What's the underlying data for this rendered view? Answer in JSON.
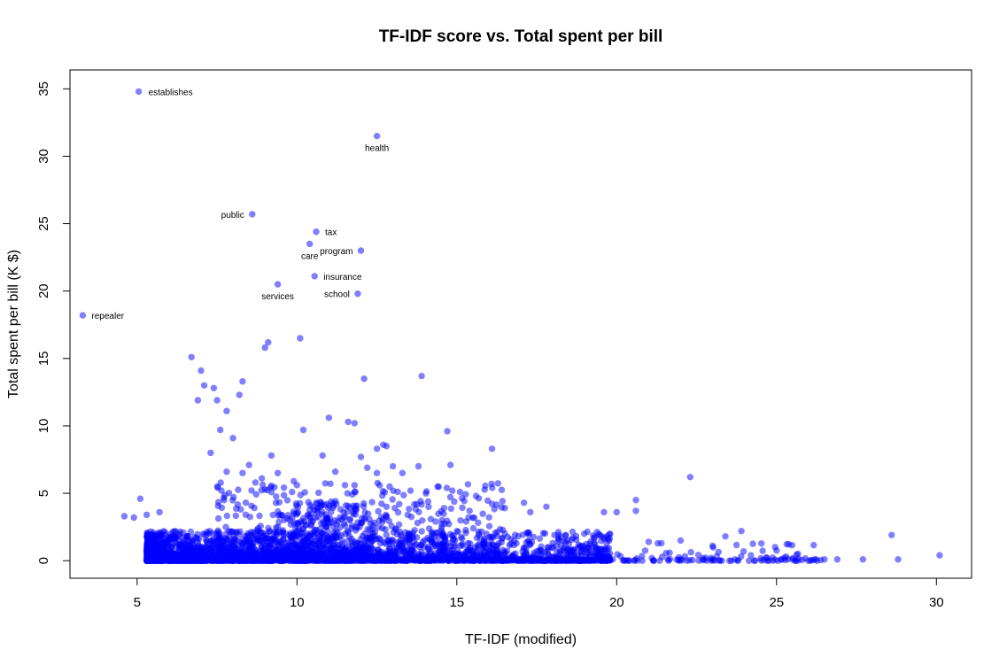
{
  "chart_data": {
    "type": "scatter",
    "title": "TF-IDF score vs. Total spent per bill",
    "xlabel": "TF-IDF (modified)",
    "ylabel": "Total spent per bill (K $)",
    "xlim": [
      2.9,
      31.1
    ],
    "ylim": [
      -1.3,
      36.4
    ],
    "xticks": [
      5,
      10,
      15,
      20,
      25,
      30
    ],
    "yticks": [
      0,
      5,
      10,
      15,
      20,
      25,
      30,
      35
    ],
    "point_color": "#0000ff",
    "point_alpha": 0.5,
    "labeled_points": [
      {
        "label": "establishes",
        "x": 5.05,
        "y": 34.8
      },
      {
        "label": "health",
        "x": 12.5,
        "y": 31.5
      },
      {
        "label": "public",
        "x": 8.6,
        "y": 25.7
      },
      {
        "label": "tax",
        "x": 10.6,
        "y": 24.4
      },
      {
        "label": "care",
        "x": 10.4,
        "y": 23.5
      },
      {
        "label": "program",
        "x": 12.0,
        "y": 23.0
      },
      {
        "label": "insurance",
        "x": 10.55,
        "y": 21.1
      },
      {
        "label": "services",
        "x": 9.4,
        "y": 20.5
      },
      {
        "label": "school",
        "x": 11.9,
        "y": 19.8
      },
      {
        "label": "repealer",
        "x": 3.3,
        "y": 18.2
      }
    ],
    "points": [
      [
        6.7,
        15.1
      ],
      [
        7.0,
        14.1
      ],
      [
        7.1,
        13.0
      ],
      [
        7.4,
        12.8
      ],
      [
        6.9,
        11.9
      ],
      [
        7.5,
        11.9
      ],
      [
        8.3,
        13.3
      ],
      [
        8.2,
        12.3
      ],
      [
        9.1,
        16.2
      ],
      [
        9.0,
        15.8
      ],
      [
        10.1,
        16.5
      ],
      [
        12.1,
        13.5
      ],
      [
        13.9,
        13.7
      ],
      [
        7.8,
        11.1
      ],
      [
        11.0,
        10.6
      ],
      [
        11.6,
        10.3
      ],
      [
        11.8,
        10.2
      ],
      [
        8.0,
        9.1
      ],
      [
        7.6,
        9.7
      ],
      [
        10.2,
        9.7
      ],
      [
        14.7,
        9.6
      ],
      [
        12.8,
        8.5
      ],
      [
        12.5,
        8.3
      ],
      [
        16.1,
        8.3
      ],
      [
        7.3,
        8.0
      ],
      [
        9.2,
        7.8
      ],
      [
        10.8,
        7.8
      ],
      [
        12.0,
        7.7
      ],
      [
        12.7,
        8.6
      ],
      [
        8.5,
        7.1
      ],
      [
        14.8,
        7.1
      ],
      [
        13.0,
        7.0
      ],
      [
        13.8,
        7.0
      ],
      [
        12.2,
        6.9
      ],
      [
        12.5,
        6.5
      ],
      [
        7.8,
        6.6
      ],
      [
        8.3,
        6.5
      ],
      [
        9.4,
        6.5
      ],
      [
        11.2,
        6.6
      ],
      [
        13.3,
        6.5
      ],
      [
        22.3,
        6.2
      ],
      [
        8.9,
        6.1
      ],
      [
        9.9,
        5.9
      ],
      [
        8.7,
        5.8
      ],
      [
        10.0,
        5.6
      ],
      [
        11.5,
        5.6
      ],
      [
        11.8,
        5.6
      ],
      [
        12.9,
        5.5
      ],
      [
        14.4,
        5.5
      ],
      [
        15.1,
        5.1
      ],
      [
        15.6,
        4.8
      ],
      [
        5.1,
        4.6
      ],
      [
        20.6,
        4.5
      ],
      [
        8.4,
        4.3
      ],
      [
        10.6,
        4.3
      ],
      [
        13.2,
        4.2
      ],
      [
        17.1,
        4.3
      ],
      [
        17.8,
        4.0
      ],
      [
        12.8,
        4.0
      ],
      [
        16.5,
        3.9
      ],
      [
        17.3,
        3.6
      ],
      [
        19.6,
        3.6
      ],
      [
        20.0,
        3.6
      ],
      [
        20.6,
        3.7
      ],
      [
        14.6,
        3.9
      ],
      [
        15.4,
        3.7
      ],
      [
        4.6,
        3.3
      ],
      [
        4.9,
        3.2
      ],
      [
        5.3,
        3.4
      ],
      [
        5.7,
        3.6
      ],
      [
        28.6,
        1.9
      ],
      [
        21.0,
        1.4
      ],
      [
        21.4,
        1.3
      ],
      [
        22.0,
        1.5
      ],
      [
        23.0,
        1.1
      ],
      [
        23.4,
        1.8
      ],
      [
        23.9,
        2.2
      ],
      [
        24.2,
        0.4
      ],
      [
        25.3,
        0.3
      ],
      [
        26.5,
        0.1
      ],
      [
        27.7,
        0.1
      ],
      [
        28.8,
        0.1
      ],
      [
        30.1,
        0.4
      ],
      [
        26.9,
        0.1
      ],
      [
        26.1,
        0.05
      ],
      [
        25.5,
        0.1
      ],
      [
        24.7,
        0.2
      ],
      [
        23.7,
        0.1
      ],
      [
        22.7,
        0.2
      ],
      [
        22.0,
        0.1
      ],
      [
        21.6,
        0.1
      ],
      [
        21.1,
        0.2
      ]
    ]
  }
}
